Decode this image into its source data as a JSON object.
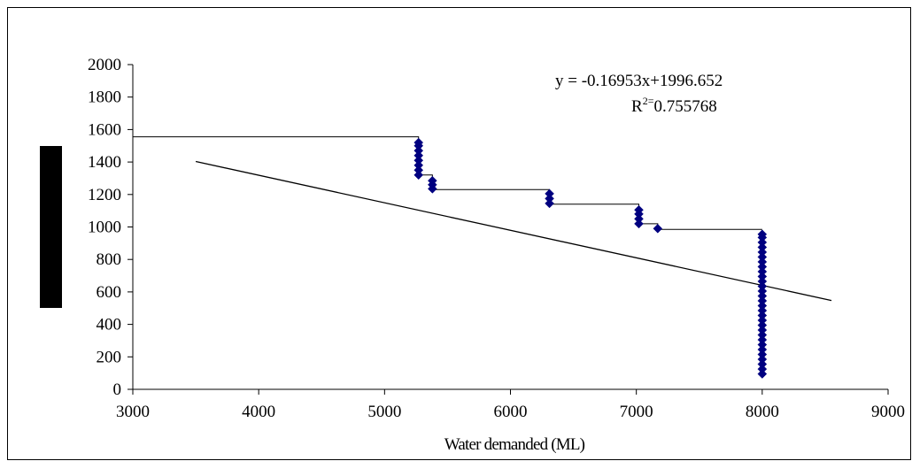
{
  "chart_data": {
    "type": "scatter",
    "title": "",
    "xlabel": "Water demanded (ML)",
    "ylabel": "",
    "xlim": [
      3000,
      9000
    ],
    "ylim": [
      0,
      2000
    ],
    "x_ticks": [
      3000,
      4000,
      5000,
      6000,
      7000,
      8000,
      9000
    ],
    "y_ticks": [
      0,
      200,
      400,
      600,
      800,
      1000,
      1200,
      1400,
      1600,
      1800,
      2000
    ],
    "grid": false,
    "legend": "none",
    "marker_color": "#000080",
    "series": [
      {
        "name": "",
        "points": [
          [
            5270,
            1320
          ],
          [
            5270,
            1350
          ],
          [
            5270,
            1380
          ],
          [
            5270,
            1410
          ],
          [
            5270,
            1440
          ],
          [
            5270,
            1470
          ],
          [
            5270,
            1500
          ],
          [
            5270,
            1520
          ],
          [
            5380,
            1235
          ],
          [
            5380,
            1260
          ],
          [
            5380,
            1285
          ],
          [
            6310,
            1145
          ],
          [
            6310,
            1175
          ],
          [
            6310,
            1205
          ],
          [
            7020,
            1020
          ],
          [
            7020,
            1050
          ],
          [
            7020,
            1080
          ],
          [
            7020,
            1105
          ],
          [
            7170,
            990
          ],
          [
            8000,
            95
          ],
          [
            8000,
            125
          ],
          [
            8000,
            155
          ],
          [
            8000,
            185
          ],
          [
            8000,
            215
          ],
          [
            8000,
            245
          ],
          [
            8000,
            275
          ],
          [
            8000,
            305
          ],
          [
            8000,
            335
          ],
          [
            8000,
            365
          ],
          [
            8000,
            395
          ],
          [
            8000,
            425
          ],
          [
            8000,
            455
          ],
          [
            8000,
            485
          ],
          [
            8000,
            515
          ],
          [
            8000,
            545
          ],
          [
            8000,
            575
          ],
          [
            8000,
            605
          ],
          [
            8000,
            635
          ],
          [
            8000,
            665
          ],
          [
            8000,
            695
          ],
          [
            8000,
            725
          ],
          [
            8000,
            755
          ],
          [
            8000,
            785
          ],
          [
            8000,
            815
          ],
          [
            8000,
            845
          ],
          [
            8000,
            875
          ],
          [
            8000,
            905
          ],
          [
            8000,
            935
          ],
          [
            8000,
            955
          ]
        ]
      }
    ],
    "step_line": [
      [
        3000,
        1555
      ],
      [
        5270,
        1555
      ],
      [
        5270,
        1320
      ],
      [
        5380,
        1320
      ],
      [
        5380,
        1230
      ],
      [
        6310,
        1230
      ],
      [
        6310,
        1140
      ],
      [
        7020,
        1140
      ],
      [
        7020,
        1020
      ],
      [
        7170,
        1020
      ],
      [
        7170,
        985
      ],
      [
        8000,
        985
      ]
    ],
    "trendline": {
      "slope": -0.16953,
      "intercept": 1996.652,
      "x_range": [
        3500,
        8550
      ]
    },
    "annotations": {
      "equation": "y = -0.16953x+1996.652",
      "r2_base": "R",
      "r2_sup": "2=",
      "r2_value": "0.755768"
    }
  }
}
